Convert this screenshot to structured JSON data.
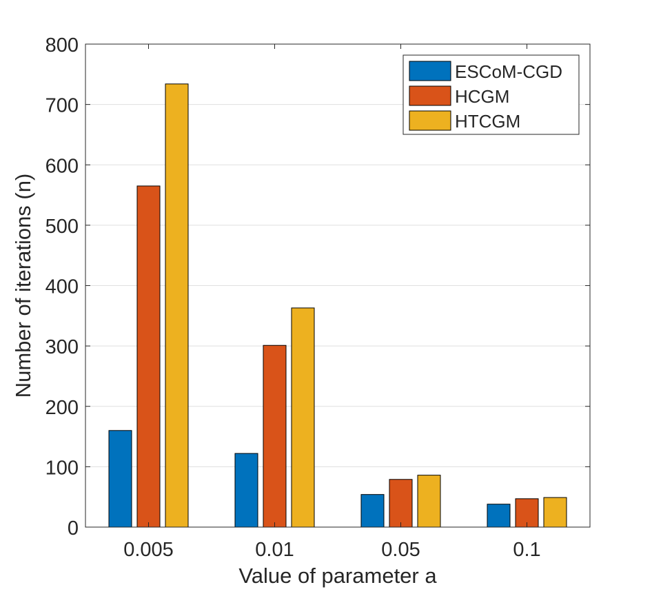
{
  "chart_data": {
    "type": "bar",
    "title": "",
    "xlabel": "Value of parameter a",
    "ylabel": "Number of iterations (n)",
    "categories": [
      "0.005",
      "0.01",
      "0.05",
      "0.1"
    ],
    "ylim": [
      0,
      800
    ],
    "yticks": [
      "0",
      "100",
      "200",
      "300",
      "400",
      "500",
      "600",
      "700",
      "800"
    ],
    "grid": "horizontal",
    "legend_position": "top-right",
    "series": [
      {
        "name": "ESCoM-CGD",
        "color": "#0072BD",
        "values": [
          160,
          122,
          54,
          38
        ]
      },
      {
        "name": "HCGM",
        "color": "#D95319",
        "values": [
          565,
          301,
          79,
          47
        ]
      },
      {
        "name": "HTCGM",
        "color": "#EDB120",
        "values": [
          734,
          363,
          86,
          49
        ]
      }
    ]
  }
}
